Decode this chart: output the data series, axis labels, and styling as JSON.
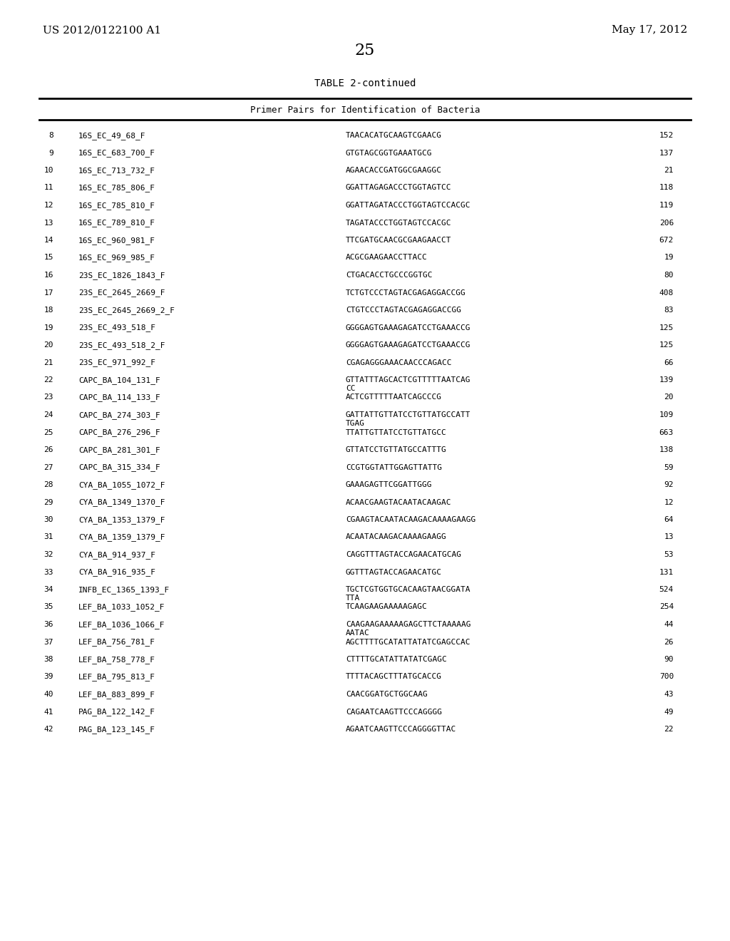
{
  "patent_left": "US 2012/0122100 A1",
  "patent_right": "May 17, 2012",
  "page_number": "25",
  "table_title": "TABLE 2-continued",
  "table_subtitle": "Primer Pairs for Identification of Bacteria",
  "rows": [
    {
      "num": "8",
      "name": "16S_EC_49_68_F",
      "sequence": "TAACACATGCAAGTCGAACG",
      "value": "152"
    },
    {
      "num": "9",
      "name": "16S_EC_683_700_F",
      "sequence": "GTGTAGCGGTGAAATGCG",
      "value": "137"
    },
    {
      "num": "10",
      "name": "16S_EC_713_732_F",
      "sequence": "AGAACACCGATGGCGAAGGC",
      "value": "21"
    },
    {
      "num": "11",
      "name": "16S_EC_785_806_F",
      "sequence": "GGATTAGAGACCCTGGTAGTCC",
      "value": "118"
    },
    {
      "num": "12",
      "name": "16S_EC_785_810_F",
      "sequence": "GGATTAGATACCCTGGTAGTCCACGC",
      "value": "119"
    },
    {
      "num": "13",
      "name": "16S_EC_789_810_F",
      "sequence": "TAGATACCCTGGTAGTCCACGC",
      "value": "206"
    },
    {
      "num": "14",
      "name": "16S_EC_960_981_F",
      "sequence": "TTCGATGCAACGCGAAGAACCT",
      "value": "672"
    },
    {
      "num": "15",
      "name": "16S_EC_969_985_F",
      "sequence": "ACGCGAAGAACCTTACC",
      "value": "19"
    },
    {
      "num": "16",
      "name": "23S_EC_1826_1843_F",
      "sequence": "CTGACACCTGCCCGGTGC",
      "value": "80"
    },
    {
      "num": "17",
      "name": "23S_EC_2645_2669_F",
      "sequence": "TCTGTCCCTAGTACGAGAGGACCGG",
      "value": "408"
    },
    {
      "num": "18",
      "name": "23S_EC_2645_2669_2_F",
      "sequence": "CTGTCCCTAGTACGAGAGGACCGG",
      "value": "83"
    },
    {
      "num": "19",
      "name": "23S_EC_493_518_F",
      "sequence": "GGGGAGTGAAAGAGATCCTGAAACCG",
      "value": "125"
    },
    {
      "num": "20",
      "name": "23S_EC_493_518_2_F",
      "sequence": "GGGGAGTGAAAGAGATCCTGAAACCG",
      "value": "125"
    },
    {
      "num": "21",
      "name": "23S_EC_971_992_F",
      "sequence": "CGAGAGGGAAACAACCCAGACC",
      "value": "66"
    },
    {
      "num": "22",
      "name": "CAPC_BA_104_131_F",
      "sequence": "GTTATTTAGCACTCGTTTTTAATCAG\nCC",
      "value": "139"
    },
    {
      "num": "23",
      "name": "CAPC_BA_114_133_F",
      "sequence": "ACTCGTTTTTAATCAGCCCG",
      "value": "20"
    },
    {
      "num": "24",
      "name": "CAPC_BA_274_303_F",
      "sequence": "GATTATTGTTATCCTGTTATGCCATT\nTGAG",
      "value": "109"
    },
    {
      "num": "25",
      "name": "CAPC_BA_276_296_F",
      "sequence": "TTATTGTTATCCTGTTATGCC",
      "value": "663"
    },
    {
      "num": "26",
      "name": "CAPC_BA_281_301_F",
      "sequence": "GTTATCCTGTTATGCCATTTG",
      "value": "138"
    },
    {
      "num": "27",
      "name": "CAPC_BA_315_334_F",
      "sequence": "CCGTGGTATTGGAGTTATTG",
      "value": "59"
    },
    {
      "num": "28",
      "name": "CYA_BA_1055_1072_F",
      "sequence": "GAAAGAGTTCGGATTGGG",
      "value": "92"
    },
    {
      "num": "29",
      "name": "CYA_BA_1349_1370_F",
      "sequence": "ACAACGAAGTACAATACAAGAC",
      "value": "12"
    },
    {
      "num": "30",
      "name": "CYA_BA_1353_1379_F",
      "sequence": "CGAAGTACAATACAAGACAAAAGAAGG",
      "value": "64"
    },
    {
      "num": "31",
      "name": "CYA_BA_1359_1379_F",
      "sequence": "ACAATACAAGACAAAAGAAGG",
      "value": "13"
    },
    {
      "num": "32",
      "name": "CYA_BA_914_937_F",
      "sequence": "CAGGTTTAGTACCAGAACATGCAG",
      "value": "53"
    },
    {
      "num": "33",
      "name": "CYA_BA_916_935_F",
      "sequence": "GGTTTAGTACCAGAACATGC",
      "value": "131"
    },
    {
      "num": "34",
      "name": "INFB_EC_1365_1393_F",
      "sequence": "TGCTCGTGGTGCACAAGTAACGGATA\nTTA",
      "value": "524"
    },
    {
      "num": "35",
      "name": "LEF_BA_1033_1052_F",
      "sequence": "TCAAGAAGAAAAAGAGC",
      "value": "254"
    },
    {
      "num": "36",
      "name": "LEF_BA_1036_1066_F",
      "sequence": "CAAGAAGAAAAAGAGCTTCTAAAAAG\nAATAC",
      "value": "44"
    },
    {
      "num": "37",
      "name": "LEF_BA_756_781_F",
      "sequence": "AGCTTTTGCATATTATATCGAGCCAC",
      "value": "26"
    },
    {
      "num": "38",
      "name": "LEF_BA_758_778_F",
      "sequence": "CTTTTGCATATTATATCGAGC",
      "value": "90"
    },
    {
      "num": "39",
      "name": "LEF_BA_795_813_F",
      "sequence": "TTTTACAGCTTTATGCACCG",
      "value": "700"
    },
    {
      "num": "40",
      "name": "LEF_BA_883_899_F",
      "sequence": "CAACGGATGCTGGCAAG",
      "value": "43"
    },
    {
      "num": "41",
      "name": "PAG_BA_122_142_F",
      "sequence": "CAGAATCAAGTTCCCAGGGG",
      "value": "49"
    },
    {
      "num": "42",
      "name": "PAG_BA_123_145_F",
      "sequence": "AGAATCAAGTTCCCAGGGGTTAC",
      "value": "22"
    }
  ]
}
